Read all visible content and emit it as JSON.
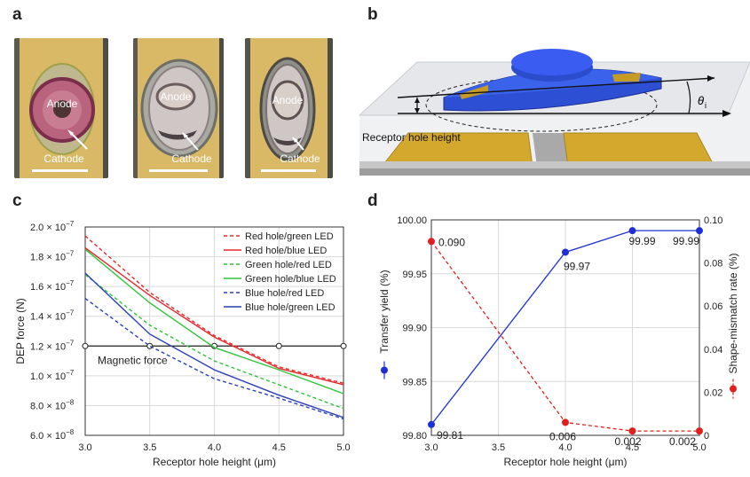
{
  "panel_labels": {
    "a": "a",
    "b": "b",
    "c": "c",
    "d": "d"
  },
  "panel_a": {
    "anode_label": "Anode",
    "cathode_label": "Cathode",
    "colors": {
      "background": "#d9b965",
      "led_pink": "#b9637e",
      "led_gray": "#cfc6c6"
    }
  },
  "panel_b": {
    "receptor_label": "Receptor hole height",
    "angle_label": "θ",
    "angle_sub": "i",
    "colors": {
      "led_blue": "#2d4fd4",
      "electrode_gold": "#d4a82c",
      "substrate": "#a9a9a9"
    }
  },
  "chart_data": [
    {
      "panel": "c",
      "type": "line",
      "xlabel": "Receptor hole height (μm)",
      "ylabel": "DEP force (N)",
      "xlim": [
        3.0,
        5.0
      ],
      "ylim": [
        6e-08,
        2e-07
      ],
      "x_ticks": [
        "3.0",
        "3.5",
        "4.0",
        "4.5",
        "5.0"
      ],
      "y_ticks": [
        {
          "value": 2e-07,
          "mant": "2.0 × 10",
          "exp": "−7"
        },
        {
          "value": 1.8e-07,
          "mant": "1.8 × 10",
          "exp": "−7"
        },
        {
          "value": 1.6e-07,
          "mant": "1.6 × 10",
          "exp": "−7"
        },
        {
          "value": 1.4e-07,
          "mant": "1.4 × 10",
          "exp": "−7"
        },
        {
          "value": 1.2e-07,
          "mant": "1.2 × 10",
          "exp": "−7"
        },
        {
          "value": 1e-07,
          "mant": "1.0 × 10",
          "exp": "−7"
        },
        {
          "value": 8e-08,
          "mant": "8.0 × 10",
          "exp": "−8"
        },
        {
          "value": 6e-08,
          "mant": "6.0 × 10",
          "exp": "−8"
        }
      ],
      "legend_position": "top-right",
      "x": [
        3.0,
        3.5,
        4.0,
        4.5,
        5.0
      ],
      "series": [
        {
          "name": "Red hole/green LED",
          "color": "#e8292c",
          "dash": true,
          "values": [
            1.94e-07,
            1.56e-07,
            1.27e-07,
            1.06e-07,
            9.5e-08
          ]
        },
        {
          "name": "Red hole/blue LED",
          "color": "#e8292c",
          "dash": false,
          "values": [
            1.86e-07,
            1.54e-07,
            1.26e-07,
            1.05e-07,
            9.4e-08
          ]
        },
        {
          "name": "Green hole/red LED",
          "color": "#2fc43a",
          "dash": true,
          "values": [
            1.68e-07,
            1.34e-07,
            1.1e-07,
            9.4e-08,
            7.8e-08
          ]
        },
        {
          "name": "Green hole/blue LED",
          "color": "#2fc43a",
          "dash": false,
          "values": [
            1.85e-07,
            1.49e-07,
            1.19e-07,
            1.04e-07,
            8.8e-08
          ]
        },
        {
          "name": "Blue hole/red LED",
          "color": "#2b3fb8",
          "dash": true,
          "values": [
            1.52e-07,
            1.2e-07,
            9.8e-08,
            8.5e-08,
            7.1e-08
          ]
        },
        {
          "name": "Blue hole/green LED",
          "color": "#2b3fb8",
          "dash": false,
          "values": [
            1.69e-07,
            1.28e-07,
            1.04e-07,
            8.7e-08,
            7.2e-08
          ]
        }
      ],
      "reference_line": {
        "name": "Magnetic force",
        "value": 1.2e-07,
        "color": "#222222"
      }
    },
    {
      "panel": "d",
      "type": "line",
      "xlabel": "Receptor hole height (μm)",
      "ylabel_left": "Transfer yield (%)",
      "ylabel_right": "Shape-mismatch rate (%)",
      "xlim": [
        3.0,
        5.0
      ],
      "ylim_left": [
        99.8,
        100.0
      ],
      "ylim_right": [
        0,
        0.1
      ],
      "x_ticks": [
        "3.0",
        "3.5",
        "4.0",
        "4.5",
        "5.0"
      ],
      "y_ticks_left": [
        "99.80",
        "99.85",
        "99.90",
        "99.95",
        "100.00"
      ],
      "y_ticks_right": [
        "0",
        "0.02",
        "0.04",
        "0.06",
        "0.08",
        "0.10"
      ],
      "x": [
        3.0,
        4.0,
        4.5,
        5.0
      ],
      "series": [
        {
          "name": "Transfer yield",
          "axis": "left",
          "color": "#1f2fd6",
          "dash": false,
          "values": [
            99.81,
            99.97,
            99.99,
            99.99
          ],
          "labels": [
            "99.81",
            "99.97",
            "99.99",
            "99.99"
          ]
        },
        {
          "name": "Shape-mismatch rate",
          "axis": "right",
          "color": "#e21f1f",
          "dash": true,
          "values": [
            0.09,
            0.006,
            0.002,
            0.002
          ],
          "labels": [
            "0.090",
            "0.006",
            "0.002",
            "0.002"
          ]
        }
      ]
    }
  ]
}
